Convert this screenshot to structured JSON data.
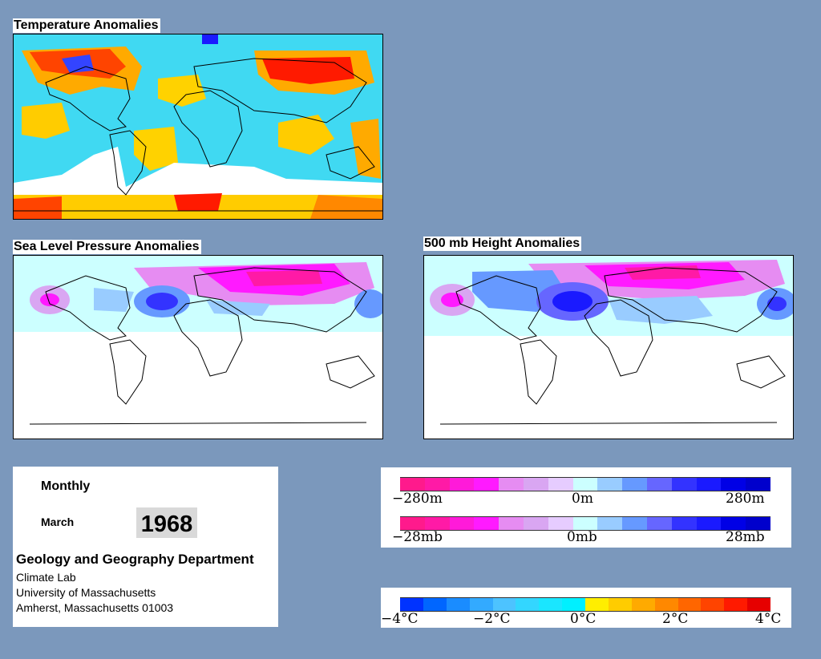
{
  "maps": {
    "temperature": {
      "title": "Temperature Anomalies"
    },
    "slp": {
      "title": "Sea Level Pressure Anomalies"
    },
    "height500": {
      "title": "500 mb Height Anomalies"
    }
  },
  "info": {
    "heading": "Monthly",
    "month": "March",
    "year": "1968",
    "department": "Geology and Geography Department",
    "lines": [
      "Climate Lab",
      "University of Massachusetts",
      "Amherst, Massachusetts 01003"
    ]
  },
  "legends": {
    "height": {
      "labels": [
        "−280m",
        "0m",
        "280m"
      ]
    },
    "pressure": {
      "labels": [
        "−28mb",
        "0mb",
        "28mb"
      ]
    },
    "temperature": {
      "labels": [
        "−4°C",
        "−2°C",
        "0°C",
        "2°C",
        "4°C"
      ]
    }
  },
  "colors": {
    "background": "#7b98bc",
    "anomaly_scale": [
      "#ff1a8c",
      "#ff1aa6",
      "#ff1ad9",
      "#ff1aff",
      "#e68cf2",
      "#d9a6f2",
      "#e6ccff",
      "#ccffff",
      "#99ccff",
      "#6699ff",
      "#6666ff",
      "#3333ff",
      "#1a1aff",
      "#0000e6",
      "#0000cc"
    ],
    "temperature_scale": [
      "#0033ff",
      "#0066ff",
      "#1a8cff",
      "#33aaff",
      "#4dc3ff",
      "#33d6ff",
      "#1ae6ff",
      "#00f0ff",
      "#ffee00",
      "#ffcc00",
      "#ffaa00",
      "#ff8800",
      "#ff6600",
      "#ff4400",
      "#ff1a00",
      "#e60000"
    ]
  }
}
